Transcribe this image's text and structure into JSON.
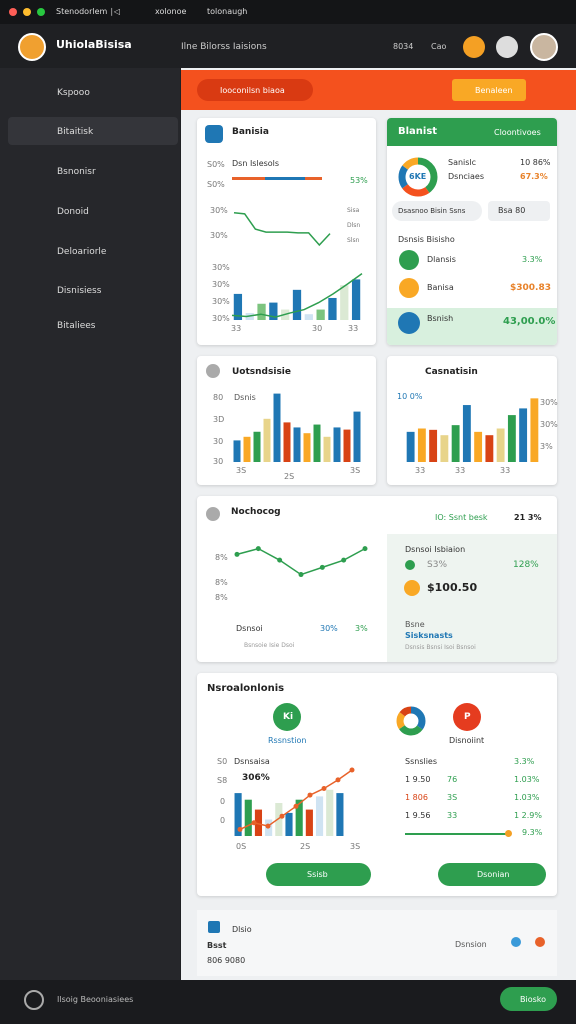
{
  "window": {
    "tab": "Stenodorlem ∣◁",
    "tab2": "xolonoe",
    "url": "tolonaugh"
  },
  "header": {
    "brand": "UhiolaBisisa",
    "nav": "Ilne Bilorss Iaisions",
    "stat": "8034",
    "user": "Cao"
  },
  "sidebar": {
    "items": [
      "Kspooo",
      "Bitaitisk",
      "Bsnonisr",
      "Donoid",
      "Deloariorle",
      "Disnisiess",
      "Bitaliees"
    ]
  },
  "banner": {
    "search": "Iooconilsn biaoa",
    "button": "Benaleen"
  },
  "card_a": {
    "title": "Banisia",
    "label": "Dsn Islesols",
    "progress_ticks": [
      "S0%",
      "S0%"
    ],
    "progress_value": "53%",
    "line_ticks": [
      "30%",
      "30%"
    ],
    "legend": [
      "Sisa",
      "Dlsn",
      "Slsn"
    ],
    "line": {
      "ylim": [
        0,
        100
      ],
      "values": [
        85,
        82,
        42,
        34,
        34,
        34,
        32,
        32,
        0,
        30
      ],
      "color": "#2e9e4f"
    },
    "bar_ticks": [
      "30%",
      "30%",
      "30%",
      "30%"
    ],
    "x_labels": [
      "33",
      "30",
      "33"
    ],
    "bars": {
      "ylim": [
        0,
        100
      ],
      "values": [
        45,
        12,
        28,
        30,
        18,
        52,
        10,
        18,
        38,
        60,
        70
      ],
      "palette": [
        "#1f77b4",
        "#cfe3f2",
        "#7cc47f",
        "#1f77b4",
        "#dbe9d4"
      ]
    },
    "trend": {
      "ylim": [
        0,
        100
      ],
      "values": [
        8,
        6,
        10,
        5,
        12,
        18,
        30,
        45,
        62,
        80
      ],
      "color": "#2e9e4f"
    }
  },
  "card_b": {
    "title": "Blanist",
    "link": "Cloontivoes",
    "donut_label": "6KE",
    "donut": {
      "values": [
        40,
        25,
        20,
        15
      ],
      "palette": [
        "#2e9e4f",
        "#f4511e",
        "#1f77b4",
        "#f9a825"
      ]
    },
    "stats": [
      {
        "label": "Sanislc",
        "value": "10 86%"
      },
      {
        "label": "Dsnciaes",
        "value": "67.3%"
      }
    ],
    "pill": "Dsasnoo Bisin Ssns",
    "pill_value": "Bsa 80",
    "section": "Dsnsis Bisisho",
    "rows": [
      {
        "label": "Dlansis",
        "value": "3.3%"
      },
      {
        "label": "Banisa",
        "value": "$300.83"
      }
    ],
    "total_label": "Bsnish",
    "total_value": "43,00.0%"
  },
  "card_c": {
    "title": "Uotsndsisie",
    "sub": "Dsnis",
    "ticks": [
      "80",
      "3D",
      "30",
      "30"
    ],
    "x_labels": [
      "3S",
      "2S",
      "3S"
    ],
    "bars": {
      "ylim": [
        0,
        100
      ],
      "values": [
        30,
        35,
        42,
        60,
        95,
        55,
        48,
        40,
        52,
        35,
        48,
        45,
        70
      ],
      "palette": [
        "#1f77b4",
        "#f9a825",
        "#2e9e4f",
        "#e8d48a",
        "#1f77b4",
        "#d84315"
      ]
    }
  },
  "card_d": {
    "title": "Casnatisin",
    "sub": "10 0%",
    "ticks": [
      "30%",
      "30%",
      "3%"
    ],
    "x_labels": [
      "33",
      "33",
      "33"
    ],
    "bars": {
      "ylim": [
        0,
        100
      ],
      "values": [
        45,
        50,
        48,
        40,
        55,
        85,
        45,
        40,
        50,
        70,
        80,
        95
      ],
      "palette": [
        "#1f77b4",
        "#f9a825",
        "#d84315",
        "#e8d48a",
        "#2e9e4f"
      ]
    }
  },
  "card_e": {
    "title": "Nochocog",
    "link": "IO: Ssnt besk",
    "change": "21 3%",
    "ticks": [
      "8%",
      "8%",
      "8%"
    ],
    "line": {
      "ylim": [
        0,
        100
      ],
      "values": [
        80,
        88,
        72,
        52,
        62,
        72,
        88
      ],
      "color": "#2e9e4f"
    },
    "x_labels": [
      "Dsnsoi",
      "30%",
      "3%"
    ],
    "legend": "Bsnsoie Isie Dsoi",
    "panel": {
      "title": "Dsnsoi Isbiaion",
      "rows": [
        {
          "label": "S3%",
          "value": "128%"
        },
        {
          "label": "$100.50"
        }
      ],
      "footer": {
        "label": "Bsne",
        "title": "Sisksnasts",
        "sub": "Dsnsis Bsnsi Isoi Bsnsoi"
      }
    }
  },
  "card_f": {
    "title": "Nsroalonlonis",
    "badges": [
      {
        "label": "Ki",
        "name": "Rssnstion"
      },
      {
        "label": "P",
        "name": "Disnoiint"
      }
    ],
    "donut": {
      "values": [
        35,
        30,
        20,
        15
      ],
      "palette": [
        "#1f77b4",
        "#2e9e4f",
        "#f9a825",
        "#d84315"
      ]
    },
    "chart": {
      "label": "Dsnsaisa",
      "value": "306%",
      "ticks": [
        "S0",
        "S8",
        "0",
        "0"
      ],
      "x_labels": [
        "0S",
        "2S",
        "3S"
      ],
      "bars": {
        "ylim": [
          0,
          100
        ],
        "values": [
          65,
          55,
          40,
          25,
          50,
          35,
          55,
          40,
          60,
          70,
          65
        ],
        "palette": [
          "#1f77b4",
          "#2e9e4f",
          "#d84315",
          "#cfe3f2",
          "#dbe9d4"
        ]
      },
      "trend": {
        "ylim": [
          0,
          100
        ],
        "values": [
          10,
          20,
          15,
          30,
          45,
          62,
          72,
          85,
          100
        ],
        "color": "#e8622a"
      }
    },
    "table": {
      "header": "Ssnslies",
      "header_value": "3.3%",
      "rows": [
        [
          "1 9.50",
          "76",
          "1.03%"
        ],
        [
          "1 806",
          "3S",
          "1.03%"
        ],
        [
          "1 9.56",
          "33",
          "1 2.9%"
        ]
      ],
      "total": "9.3%"
    },
    "buttons": [
      "Ssisb",
      "Dsonian"
    ]
  },
  "footer": {
    "title": "Dlsio",
    "label": "Bsst",
    "value": "806 9080",
    "link": "Dsnsion"
  },
  "bottombar": {
    "label": "Ilsoig Beooniasiees",
    "button": "Biosko"
  }
}
